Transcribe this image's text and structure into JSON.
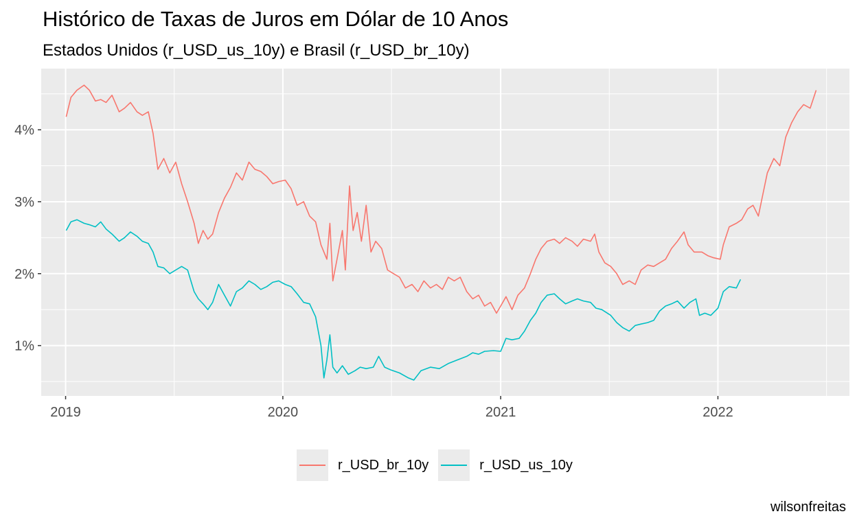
{
  "chart_data": {
    "type": "line",
    "title": "Histórico de Taxas de Juros em Dólar de 10 Anos",
    "subtitle": "Estados Unidos (r_USD_us_10y) e Brasil (r_USD_br_10y)",
    "caption": "wilsonfreitas",
    "xlabel": "",
    "ylabel": "",
    "xlim": [
      "2018-11-21",
      "2022-08-10"
    ],
    "ylim": [
      0.3,
      4.85
    ],
    "x_ticks": [
      "2019-01-01",
      "2020-01-01",
      "2021-01-01",
      "2022-01-01"
    ],
    "x_tick_labels": [
      "2019",
      "2020",
      "2021",
      "2022"
    ],
    "y_ticks": [
      1,
      2,
      3,
      4
    ],
    "y_tick_labels": [
      "1%",
      "2%",
      "3%",
      "4%"
    ],
    "grid": true,
    "legend_position": "bottom",
    "series": [
      {
        "name": "r_USD_br_10y",
        "color": "#F8766D",
        "points": [
          [
            "2019-01-02",
            4.18
          ],
          [
            "2019-01-10",
            4.45
          ],
          [
            "2019-01-20",
            4.55
          ],
          [
            "2019-02-01",
            4.62
          ],
          [
            "2019-02-10",
            4.55
          ],
          [
            "2019-02-20",
            4.4
          ],
          [
            "2019-03-01",
            4.42
          ],
          [
            "2019-03-10",
            4.38
          ],
          [
            "2019-03-20",
            4.48
          ],
          [
            "2019-04-01",
            4.25
          ],
          [
            "2019-04-10",
            4.3
          ],
          [
            "2019-04-20",
            4.38
          ],
          [
            "2019-05-01",
            4.25
          ],
          [
            "2019-05-10",
            4.2
          ],
          [
            "2019-05-20",
            4.25
          ],
          [
            "2019-05-28",
            3.95
          ],
          [
            "2019-06-05",
            3.45
          ],
          [
            "2019-06-15",
            3.6
          ],
          [
            "2019-06-25",
            3.4
          ],
          [
            "2019-07-05",
            3.55
          ],
          [
            "2019-07-15",
            3.25
          ],
          [
            "2019-07-25",
            3.0
          ],
          [
            "2019-08-05",
            2.7
          ],
          [
            "2019-08-12",
            2.42
          ],
          [
            "2019-08-20",
            2.6
          ],
          [
            "2019-08-28",
            2.48
          ],
          [
            "2019-09-05",
            2.55
          ],
          [
            "2019-09-15",
            2.85
          ],
          [
            "2019-09-25",
            3.05
          ],
          [
            "2019-10-05",
            3.2
          ],
          [
            "2019-10-15",
            3.4
          ],
          [
            "2019-10-25",
            3.3
          ],
          [
            "2019-11-05",
            3.55
          ],
          [
            "2019-11-15",
            3.45
          ],
          [
            "2019-11-25",
            3.42
          ],
          [
            "2019-12-05",
            3.35
          ],
          [
            "2019-12-15",
            3.25
          ],
          [
            "2019-12-25",
            3.28
          ],
          [
            "2020-01-05",
            3.3
          ],
          [
            "2020-01-15",
            3.18
          ],
          [
            "2020-01-25",
            2.95
          ],
          [
            "2020-02-05",
            3.0
          ],
          [
            "2020-02-15",
            2.8
          ],
          [
            "2020-02-25",
            2.72
          ],
          [
            "2020-03-05",
            2.4
          ],
          [
            "2020-03-15",
            2.2
          ],
          [
            "2020-03-20",
            2.7
          ],
          [
            "2020-03-25",
            1.9
          ],
          [
            "2020-04-01",
            2.2
          ],
          [
            "2020-04-10",
            2.6
          ],
          [
            "2020-04-15",
            2.05
          ],
          [
            "2020-04-22",
            3.22
          ],
          [
            "2020-04-28",
            2.6
          ],
          [
            "2020-05-05",
            2.85
          ],
          [
            "2020-05-12",
            2.45
          ],
          [
            "2020-05-20",
            2.95
          ],
          [
            "2020-05-28",
            2.3
          ],
          [
            "2020-06-05",
            2.45
          ],
          [
            "2020-06-15",
            2.35
          ],
          [
            "2020-06-25",
            2.05
          ],
          [
            "2020-07-05",
            2.0
          ],
          [
            "2020-07-15",
            1.95
          ],
          [
            "2020-07-25",
            1.8
          ],
          [
            "2020-08-05",
            1.85
          ],
          [
            "2020-08-15",
            1.75
          ],
          [
            "2020-08-25",
            1.9
          ],
          [
            "2020-09-05",
            1.8
          ],
          [
            "2020-09-15",
            1.85
          ],
          [
            "2020-09-25",
            1.78
          ],
          [
            "2020-10-05",
            1.95
          ],
          [
            "2020-10-15",
            1.9
          ],
          [
            "2020-10-25",
            1.95
          ],
          [
            "2020-11-05",
            1.75
          ],
          [
            "2020-11-15",
            1.65
          ],
          [
            "2020-11-25",
            1.7
          ],
          [
            "2020-12-05",
            1.55
          ],
          [
            "2020-12-15",
            1.6
          ],
          [
            "2020-12-25",
            1.45
          ],
          [
            "2021-01-01",
            1.55
          ],
          [
            "2021-01-10",
            1.68
          ],
          [
            "2021-01-20",
            1.5
          ],
          [
            "2021-01-30",
            1.7
          ],
          [
            "2021-02-10",
            1.8
          ],
          [
            "2021-02-20",
            2.0
          ],
          [
            "2021-03-01",
            2.2
          ],
          [
            "2021-03-10",
            2.35
          ],
          [
            "2021-03-20",
            2.45
          ],
          [
            "2021-04-01",
            2.48
          ],
          [
            "2021-04-10",
            2.42
          ],
          [
            "2021-04-20",
            2.5
          ],
          [
            "2021-05-01",
            2.45
          ],
          [
            "2021-05-10",
            2.38
          ],
          [
            "2021-05-20",
            2.48
          ],
          [
            "2021-06-01",
            2.45
          ],
          [
            "2021-06-08",
            2.55
          ],
          [
            "2021-06-15",
            2.3
          ],
          [
            "2021-06-25",
            2.15
          ],
          [
            "2021-07-05",
            2.1
          ],
          [
            "2021-07-15",
            2.0
          ],
          [
            "2021-07-25",
            1.85
          ],
          [
            "2021-08-05",
            1.9
          ],
          [
            "2021-08-15",
            1.85
          ],
          [
            "2021-08-25",
            2.05
          ],
          [
            "2021-09-05",
            2.12
          ],
          [
            "2021-09-15",
            2.1
          ],
          [
            "2021-09-25",
            2.15
          ],
          [
            "2021-10-05",
            2.2
          ],
          [
            "2021-10-15",
            2.35
          ],
          [
            "2021-10-25",
            2.45
          ],
          [
            "2021-11-05",
            2.58
          ],
          [
            "2021-11-12",
            2.4
          ],
          [
            "2021-11-22",
            2.3
          ],
          [
            "2021-12-05",
            2.3
          ],
          [
            "2021-12-15",
            2.25
          ],
          [
            "2021-12-25",
            2.22
          ],
          [
            "2022-01-05",
            2.2
          ],
          [
            "2022-01-10",
            2.4
          ],
          [
            "2022-01-20",
            2.65
          ],
          [
            "2022-02-01",
            2.7
          ],
          [
            "2022-02-10",
            2.75
          ],
          [
            "2022-02-20",
            2.9
          ],
          [
            "2022-03-01",
            2.95
          ],
          [
            "2022-03-10",
            2.8
          ],
          [
            "2022-03-15",
            3.0
          ],
          [
            "2022-03-25",
            3.4
          ],
          [
            "2022-04-05",
            3.6
          ],
          [
            "2022-04-15",
            3.5
          ],
          [
            "2022-04-25",
            3.9
          ],
          [
            "2022-05-05",
            4.1
          ],
          [
            "2022-05-15",
            4.25
          ],
          [
            "2022-05-25",
            4.35
          ],
          [
            "2022-06-05",
            4.3
          ],
          [
            "2022-06-15",
            4.55
          ]
        ]
      },
      {
        "name": "r_USD_us_10y",
        "color": "#00BFC4",
        "points": [
          [
            "2019-01-02",
            2.6
          ],
          [
            "2019-01-10",
            2.72
          ],
          [
            "2019-01-20",
            2.75
          ],
          [
            "2019-02-01",
            2.7
          ],
          [
            "2019-02-10",
            2.68
          ],
          [
            "2019-02-20",
            2.65
          ],
          [
            "2019-03-01",
            2.72
          ],
          [
            "2019-03-10",
            2.62
          ],
          [
            "2019-03-20",
            2.55
          ],
          [
            "2019-04-01",
            2.45
          ],
          [
            "2019-04-10",
            2.5
          ],
          [
            "2019-04-20",
            2.58
          ],
          [
            "2019-05-01",
            2.52
          ],
          [
            "2019-05-10",
            2.45
          ],
          [
            "2019-05-20",
            2.42
          ],
          [
            "2019-05-28",
            2.3
          ],
          [
            "2019-06-05",
            2.1
          ],
          [
            "2019-06-15",
            2.08
          ],
          [
            "2019-06-25",
            2.0
          ],
          [
            "2019-07-05",
            2.05
          ],
          [
            "2019-07-15",
            2.1
          ],
          [
            "2019-07-25",
            2.05
          ],
          [
            "2019-08-05",
            1.75
          ],
          [
            "2019-08-12",
            1.65
          ],
          [
            "2019-08-20",
            1.58
          ],
          [
            "2019-08-28",
            1.5
          ],
          [
            "2019-09-05",
            1.6
          ],
          [
            "2019-09-15",
            1.85
          ],
          [
            "2019-09-25",
            1.7
          ],
          [
            "2019-10-05",
            1.55
          ],
          [
            "2019-10-15",
            1.75
          ],
          [
            "2019-10-25",
            1.8
          ],
          [
            "2019-11-05",
            1.9
          ],
          [
            "2019-11-15",
            1.85
          ],
          [
            "2019-11-25",
            1.78
          ],
          [
            "2019-12-05",
            1.82
          ],
          [
            "2019-12-15",
            1.88
          ],
          [
            "2019-12-25",
            1.9
          ],
          [
            "2020-01-05",
            1.85
          ],
          [
            "2020-01-15",
            1.82
          ],
          [
            "2020-01-25",
            1.72
          ],
          [
            "2020-02-05",
            1.6
          ],
          [
            "2020-02-15",
            1.58
          ],
          [
            "2020-02-25",
            1.4
          ],
          [
            "2020-03-05",
            1.0
          ],
          [
            "2020-03-10",
            0.55
          ],
          [
            "2020-03-15",
            0.8
          ],
          [
            "2020-03-20",
            1.15
          ],
          [
            "2020-03-25",
            0.7
          ],
          [
            "2020-04-01",
            0.62
          ],
          [
            "2020-04-10",
            0.72
          ],
          [
            "2020-04-20",
            0.6
          ],
          [
            "2020-05-01",
            0.65
          ],
          [
            "2020-05-10",
            0.7
          ],
          [
            "2020-05-20",
            0.68
          ],
          [
            "2020-06-01",
            0.7
          ],
          [
            "2020-06-10",
            0.85
          ],
          [
            "2020-06-20",
            0.7
          ],
          [
            "2020-07-01",
            0.66
          ],
          [
            "2020-07-15",
            0.62
          ],
          [
            "2020-07-30",
            0.55
          ],
          [
            "2020-08-08",
            0.52
          ],
          [
            "2020-08-20",
            0.65
          ],
          [
            "2020-09-05",
            0.7
          ],
          [
            "2020-09-20",
            0.68
          ],
          [
            "2020-10-05",
            0.75
          ],
          [
            "2020-10-20",
            0.8
          ],
          [
            "2020-11-05",
            0.85
          ],
          [
            "2020-11-15",
            0.9
          ],
          [
            "2020-11-25",
            0.88
          ],
          [
            "2020-12-05",
            0.92
          ],
          [
            "2020-12-20",
            0.93
          ],
          [
            "2021-01-01",
            0.92
          ],
          [
            "2021-01-10",
            1.1
          ],
          [
            "2021-01-20",
            1.08
          ],
          [
            "2021-02-01",
            1.1
          ],
          [
            "2021-02-10",
            1.2
          ],
          [
            "2021-02-20",
            1.35
          ],
          [
            "2021-03-01",
            1.45
          ],
          [
            "2021-03-10",
            1.6
          ],
          [
            "2021-03-20",
            1.7
          ],
          [
            "2021-04-01",
            1.72
          ],
          [
            "2021-04-10",
            1.65
          ],
          [
            "2021-04-20",
            1.58
          ],
          [
            "2021-05-01",
            1.62
          ],
          [
            "2021-05-10",
            1.65
          ],
          [
            "2021-05-20",
            1.62
          ],
          [
            "2021-06-01",
            1.6
          ],
          [
            "2021-06-10",
            1.52
          ],
          [
            "2021-06-20",
            1.5
          ],
          [
            "2021-07-05",
            1.42
          ],
          [
            "2021-07-15",
            1.32
          ],
          [
            "2021-07-25",
            1.25
          ],
          [
            "2021-08-05",
            1.2
          ],
          [
            "2021-08-15",
            1.28
          ],
          [
            "2021-08-25",
            1.3
          ],
          [
            "2021-09-05",
            1.32
          ],
          [
            "2021-09-15",
            1.35
          ],
          [
            "2021-09-25",
            1.48
          ],
          [
            "2021-10-05",
            1.55
          ],
          [
            "2021-10-15",
            1.58
          ],
          [
            "2021-10-25",
            1.62
          ],
          [
            "2021-11-05",
            1.52
          ],
          [
            "2021-11-15",
            1.6
          ],
          [
            "2021-11-25",
            1.65
          ],
          [
            "2021-12-01",
            1.42
          ],
          [
            "2021-12-10",
            1.45
          ],
          [
            "2021-12-20",
            1.42
          ],
          [
            "2022-01-01",
            1.52
          ],
          [
            "2022-01-10",
            1.75
          ],
          [
            "2022-01-20",
            1.82
          ],
          [
            "2022-02-01",
            1.8
          ],
          [
            "2022-02-08",
            1.92
          ]
        ]
      }
    ]
  }
}
